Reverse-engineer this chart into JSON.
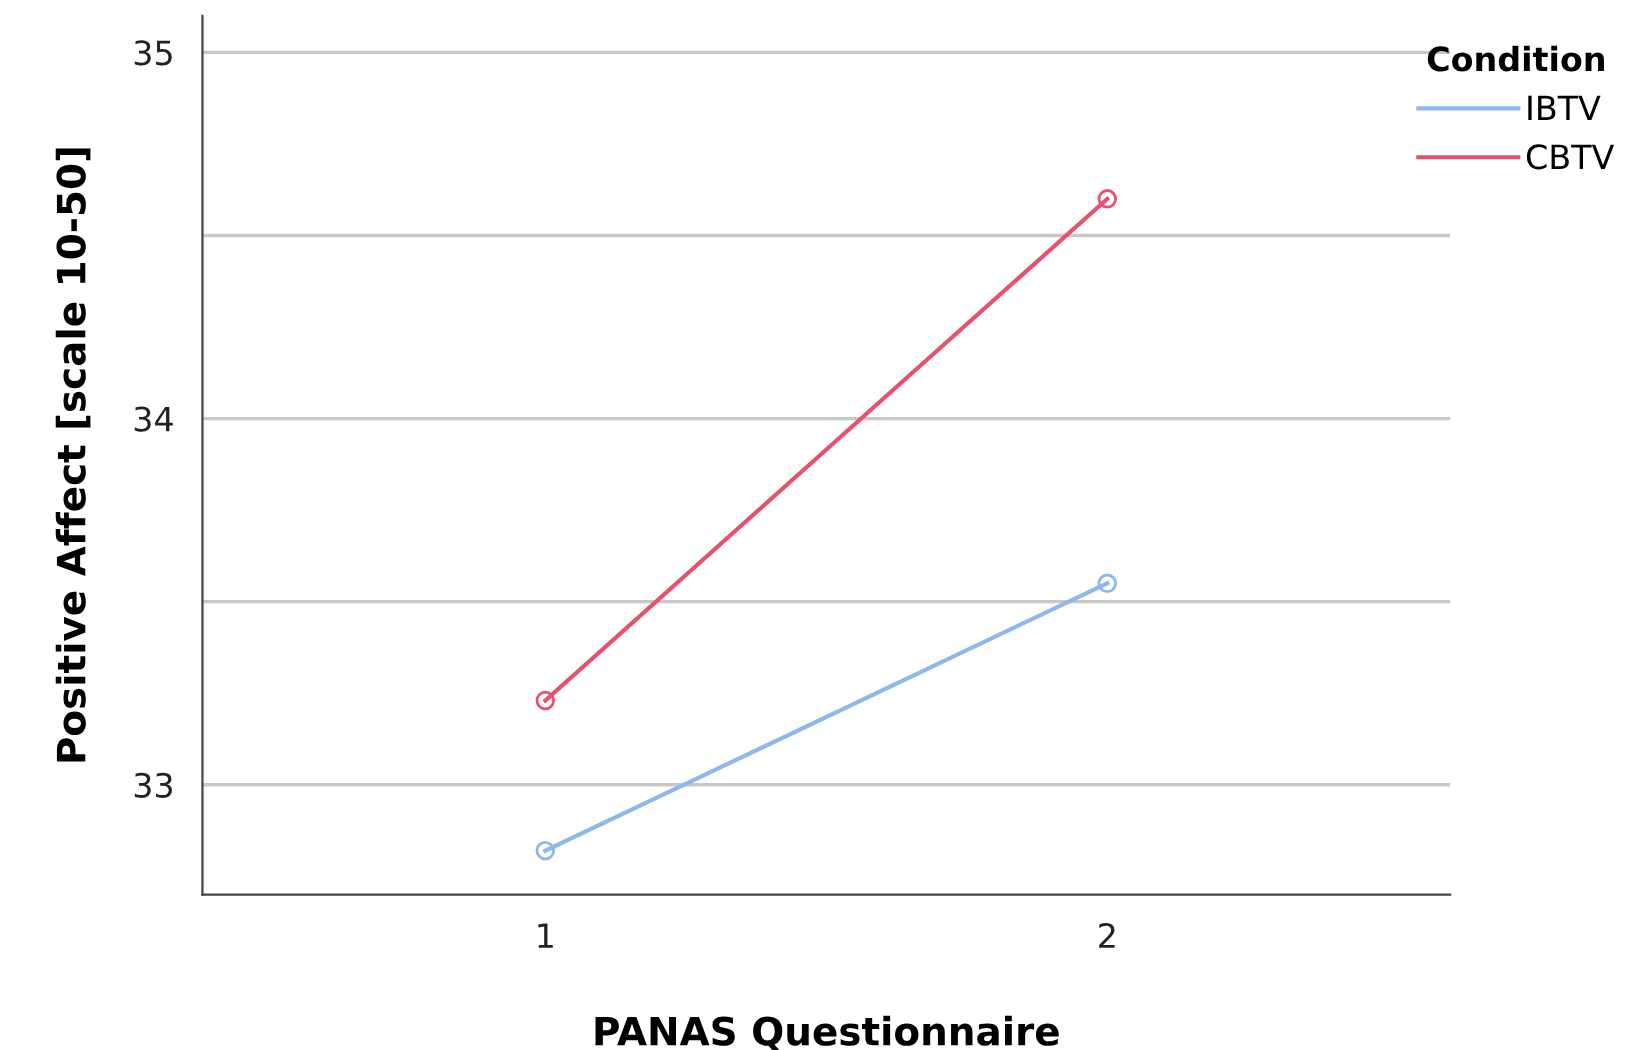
{
  "chart_data": {
    "type": "line",
    "xlabel": "PANAS Questionnaire",
    "ylabel": "Positive Affect [scale 10-50]",
    "legend_title": "Condition",
    "categories": [
      "1",
      "2"
    ],
    "series": [
      {
        "name": "IBTV",
        "color": "#8db8ec",
        "values": [
          32.82,
          33.55
        ]
      },
      {
        "name": "CBTV",
        "color": "#e8506e",
        "values": [
          33.23,
          34.6
        ]
      }
    ],
    "ylim": [
      32.7,
      35.1
    ],
    "yticks": [
      33,
      {
        "value": 33.5,
        "label": null
      },
      34,
      {
        "value": 34.5,
        "label": null
      },
      35
    ],
    "grid": "y",
    "legend": "top right",
    "marker": "circle",
    "line_style": "solid"
  }
}
